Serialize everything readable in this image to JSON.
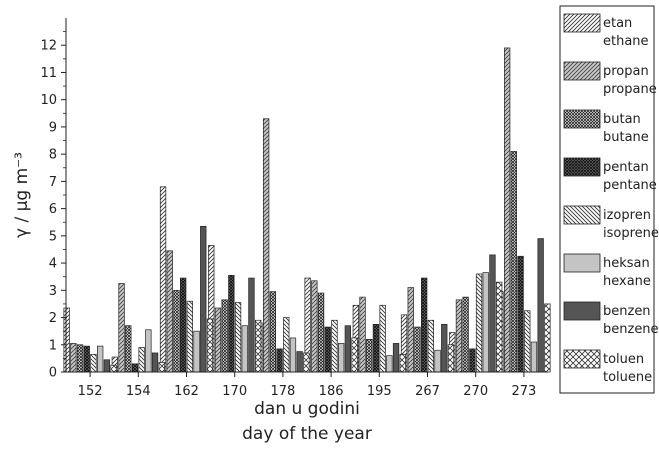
{
  "chart_data": {
    "type": "bar",
    "categories": [
      "152",
      "154",
      "162",
      "170",
      "178",
      "186",
      "195",
      "267",
      "270",
      "273"
    ],
    "xlabel_lines": [
      "dan u godini",
      "day of the year"
    ],
    "ylabel": "γ / μg m⁻³",
    "ylim": [
      0,
      13
    ],
    "yticks": [
      0,
      1,
      2,
      3,
      4,
      5,
      6,
      7,
      8,
      9,
      10,
      11,
      12
    ],
    "legend_position": "right",
    "series": [
      {
        "name": "etan",
        "name_en": "ethane",
        "pattern": "diag-right",
        "values": [
          2.35,
          0.55,
          6.8,
          4.65,
          1.8,
          3.45,
          2.45,
          2.1,
          1.45,
          2.95
        ]
      },
      {
        "name": "propan",
        "name_en": "propane",
        "pattern": "diag-right-grey",
        "values": [
          1.05,
          3.25,
          4.45,
          2.35,
          9.3,
          3.35,
          2.75,
          3.1,
          2.65,
          11.9
        ]
      },
      {
        "name": "butan",
        "name_en": "butane",
        "pattern": "cross-fine",
        "values": [
          1.0,
          1.7,
          3.0,
          2.65,
          2.95,
          2.9,
          1.2,
          1.65,
          2.75,
          8.1
        ]
      },
      {
        "name": "pentan",
        "name_en": "pentane",
        "pattern": "cross-dark",
        "values": [
          0.95,
          0.3,
          3.45,
          3.55,
          0.85,
          1.65,
          1.75,
          3.45,
          0.85,
          4.25
        ]
      },
      {
        "name": "izopren",
        "name_en": "isoprene",
        "pattern": "diag-left",
        "values": [
          0.65,
          0.9,
          2.6,
          2.55,
          2.0,
          1.9,
          2.45,
          1.9,
          3.6,
          2.25
        ]
      },
      {
        "name": "heksan",
        "name_en": "hexane",
        "pattern": "light-grey",
        "values": [
          0.95,
          1.55,
          1.5,
          1.7,
          1.25,
          1.05,
          0.6,
          0.8,
          3.65,
          1.1
        ]
      },
      {
        "name": "benzen",
        "name_en": "benzene",
        "pattern": "dark-grey",
        "values": [
          0.45,
          0.7,
          5.35,
          3.45,
          0.75,
          1.7,
          1.05,
          1.75,
          4.3,
          4.9
        ]
      },
      {
        "name": "toluen",
        "name_en": "toluene",
        "pattern": "cross-open",
        "values": [
          0.25,
          0.35,
          1.95,
          1.9,
          0.7,
          1.25,
          0.65,
          1.0,
          3.3,
          2.5
        ]
      }
    ]
  }
}
